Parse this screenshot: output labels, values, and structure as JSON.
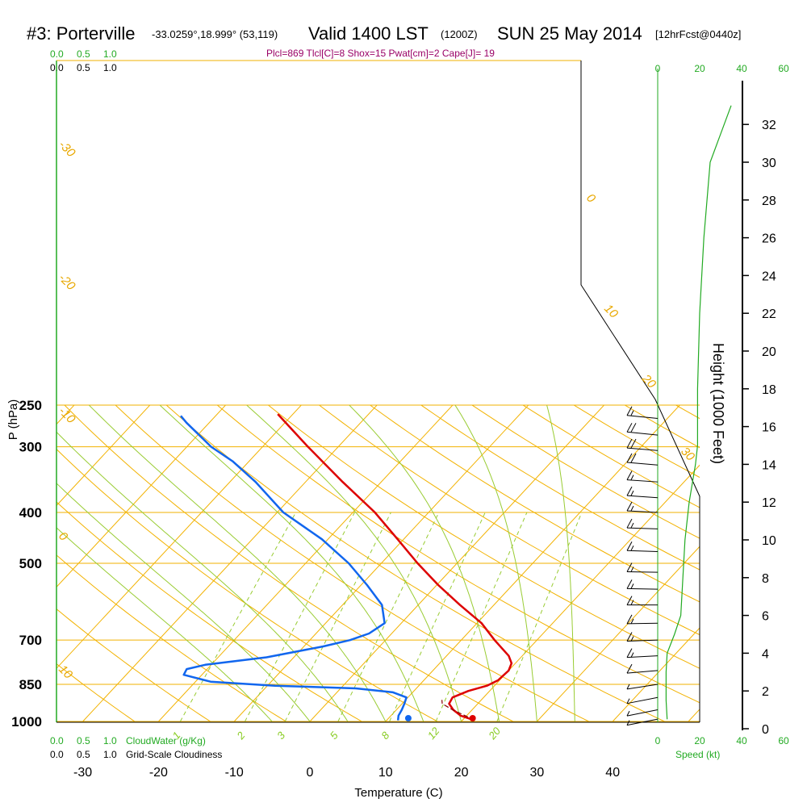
{
  "header": {
    "station": "#3: Porterville",
    "coords": "-33.0259°,18.999° (53,119)",
    "valid": "Valid 1400 LST",
    "utc": "(1200Z)",
    "date": "SUN 25 May 2014",
    "forecast": "[12hrFcst@0440z]"
  },
  "params_line": "Plcl=869 Tlcl[C]=8 Shox=15 Pwat[cm]=2 Cape[J]= 19",
  "labels": {
    "p_axis": "P (hPa)",
    "t_axis": "Temperature (C)",
    "h_axis": "Height (1000 Feet)",
    "cloudwater": "CloudWater (g/Kg)",
    "cloudiness": "Grid-Scale Cloudiness",
    "speed": "Speed (kt)"
  },
  "scale_top_green": [
    "0.0",
    "0.5",
    "1.0"
  ],
  "scale_top_black": [
    "0.0",
    "0.5",
    "1.0"
  ],
  "scale_bottom_green": [
    "0.0",
    "0.5",
    "1.0"
  ],
  "scale_bottom_black": [
    "0.0",
    "0.5",
    "1.0"
  ],
  "speed_ticks_top": [
    "0",
    "20",
    "40",
    "60"
  ],
  "speed_ticks_bottom": [
    "0",
    "20",
    "40",
    "60"
  ],
  "colors": {
    "temperature": "#dd0000",
    "dewpoint": "#1166ee",
    "isotherm": "#f2b200",
    "dry_adiabat": "#f2b200",
    "moist_adiabat": "#99cc33",
    "mixing_ratio": "#99cc33",
    "wind_speed": "#22aa22",
    "params": "#990066"
  },
  "chart_data": {
    "type": "line",
    "title": "#3: Porterville Valid 1400 LST (1200Z) SUN 25 May 2014 [12hrFcst@0440z]",
    "xlabel": "Temperature (C)",
    "ylabel": "P (hPa)",
    "yscale": "log",
    "pressure_ticks": [
      1000,
      850,
      700,
      500,
      400,
      300,
      250
    ],
    "temperature_ticks": [
      -30,
      -20,
      -10,
      0,
      10,
      20,
      30,
      40
    ],
    "height_ticks_kft": [
      0,
      2,
      4,
      6,
      8,
      10,
      12,
      14,
      16,
      18,
      20,
      22,
      24,
      26,
      28,
      30,
      32
    ],
    "isotherm_labels": [
      "-30",
      "-20",
      "-10",
      "0",
      "10",
      "0",
      "10",
      "20",
      "30"
    ],
    "mixing_ratio_labels": [
      "1",
      "2",
      "3",
      "5",
      "8",
      "12",
      "20"
    ],
    "series": [
      {
        "name": "Temperature",
        "points": [
          {
            "p": 995,
            "t": 21.6
          },
          {
            "p": 975,
            "t": 19.2
          },
          {
            "p": 950,
            "t": 17.5
          },
          {
            "p": 925,
            "t": 16.2
          },
          {
            "p": 900,
            "t": 15.9
          },
          {
            "p": 875,
            "t": 17.2
          },
          {
            "p": 855,
            "t": 19.0
          },
          {
            "p": 835,
            "t": 19.8
          },
          {
            "p": 800,
            "t": 20.0
          },
          {
            "p": 775,
            "t": 19.5
          },
          {
            "p": 750,
            "t": 18.2
          },
          {
            "p": 700,
            "t": 14.4
          },
          {
            "p": 650,
            "t": 10.6
          },
          {
            "p": 600,
            "t": 5.5
          },
          {
            "p": 550,
            "t": 0.2
          },
          {
            "p": 500,
            "t": -5.2
          },
          {
            "p": 450,
            "t": -10.8
          },
          {
            "p": 400,
            "t": -17.1
          },
          {
            "p": 350,
            "t": -25.1
          },
          {
            "p": 300,
            "t": -34.0
          },
          {
            "p": 260,
            "t": -42.0
          }
        ]
      },
      {
        "name": "Dewpoint",
        "points": [
          {
            "p": 995,
            "t": 11.5
          },
          {
            "p": 975,
            "t": 11.0
          },
          {
            "p": 950,
            "t": 10.7
          },
          {
            "p": 925,
            "t": 10.3
          },
          {
            "p": 900,
            "t": 9.8
          },
          {
            "p": 880,
            "t": 7.4
          },
          {
            "p": 865,
            "t": 2.0
          },
          {
            "p": 855,
            "t": -9.0
          },
          {
            "p": 840,
            "t": -18.0
          },
          {
            "p": 815,
            "t": -22.4
          },
          {
            "p": 795,
            "t": -22.7
          },
          {
            "p": 780,
            "t": -20.8
          },
          {
            "p": 755,
            "t": -13.6
          },
          {
            "p": 720,
            "t": -7.5
          },
          {
            "p": 700,
            "t": -4.7
          },
          {
            "p": 680,
            "t": -3.0
          },
          {
            "p": 650,
            "t": -2.2
          },
          {
            "p": 600,
            "t": -4.8
          },
          {
            "p": 550,
            "t": -9.2
          },
          {
            "p": 500,
            "t": -14.3
          },
          {
            "p": 450,
            "t": -20.8
          },
          {
            "p": 400,
            "t": -29.2
          },
          {
            "p": 350,
            "t": -36.6
          },
          {
            "p": 320,
            "t": -42.1
          },
          {
            "p": 300,
            "t": -46.8
          },
          {
            "p": 270,
            "t": -53.0
          },
          {
            "p": 262,
            "t": -54.6
          }
        ]
      },
      {
        "name": "Parcel",
        "points": [
          {
            "p": 995,
            "t": 21.6
          },
          {
            "p": 975,
            "t": 19.8
          },
          {
            "p": 950,
            "t": 17.4
          },
          {
            "p": 925,
            "t": 15.3
          },
          {
            "p": 910,
            "t": 14.8
          }
        ]
      }
    ],
    "surface_points": [
      {
        "name": "surface-temperature",
        "p": 1000,
        "t": 21.5
      },
      {
        "name": "surface-dewpoint",
        "p": 1000,
        "t": 13.0
      }
    ],
    "wind_speed_profile_kt": [
      {
        "h": 0.5,
        "v": 4.5
      },
      {
        "h": 1.5,
        "v": 4.0
      },
      {
        "h": 3,
        "v": 4.0
      },
      {
        "h": 4,
        "v": 4.5
      },
      {
        "h": 5,
        "v": 8
      },
      {
        "h": 6,
        "v": 11
      },
      {
        "h": 8,
        "v": 12
      },
      {
        "h": 10,
        "v": 13
      },
      {
        "h": 12,
        "v": 15
      },
      {
        "h": 14,
        "v": 18
      },
      {
        "h": 15,
        "v": 19
      },
      {
        "h": 18,
        "v": 19
      },
      {
        "h": 22,
        "v": 20
      },
      {
        "h": 26,
        "v": 22
      },
      {
        "h": 30,
        "v": 25
      },
      {
        "h": 33,
        "v": 35
      }
    ],
    "wind_barbs": [
      {
        "p": 265,
        "dir": 300,
        "spd": 15
      },
      {
        "p": 285,
        "dir": 300,
        "spd": 20
      },
      {
        "p": 305,
        "dir": 295,
        "spd": 20
      },
      {
        "p": 325,
        "dir": 295,
        "spd": 20
      },
      {
        "p": 350,
        "dir": 290,
        "spd": 15
      },
      {
        "p": 375,
        "dir": 290,
        "spd": 15
      },
      {
        "p": 400,
        "dir": 285,
        "spd": 15
      },
      {
        "p": 430,
        "dir": 280,
        "spd": 15
      },
      {
        "p": 475,
        "dir": 280,
        "spd": 15
      },
      {
        "p": 520,
        "dir": 275,
        "spd": 15
      },
      {
        "p": 560,
        "dir": 275,
        "spd": 15
      },
      {
        "p": 600,
        "dir": 270,
        "spd": 15
      },
      {
        "p": 650,
        "dir": 265,
        "spd": 15
      },
      {
        "p": 700,
        "dir": 260,
        "spd": 15
      },
      {
        "p": 750,
        "dir": 255,
        "spd": 15
      },
      {
        "p": 800,
        "dir": 245,
        "spd": 10
      },
      {
        "p": 850,
        "dir": 220,
        "spd": 5
      },
      {
        "p": 900,
        "dir": 190,
        "spd": 5
      },
      {
        "p": 950,
        "dir": 180,
        "spd": 5
      },
      {
        "p": 990,
        "dir": 170,
        "spd": 5
      }
    ],
    "grid": true
  }
}
